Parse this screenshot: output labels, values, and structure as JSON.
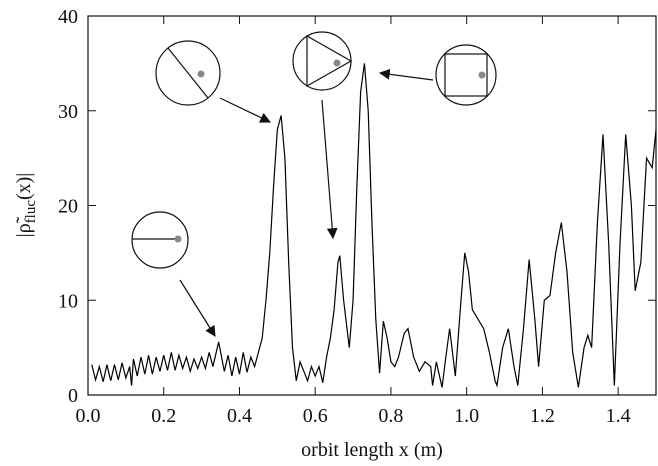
{
  "chart_data": {
    "type": "line",
    "xlabel": "orbit length x (m)",
    "ylabel": [
      "|ρ̃",
      "fluc",
      "(x)|"
    ],
    "xlim": [
      0,
      1.5
    ],
    "ylim": [
      0,
      40
    ],
    "xticks": [
      {
        "value": 0,
        "label": "0.0"
      },
      {
        "value": 0.2,
        "label": "0.2"
      },
      {
        "value": 0.4,
        "label": "0.4"
      },
      {
        "value": 0.6,
        "label": "0.6"
      },
      {
        "value": 0.8,
        "label": "0.8"
      },
      {
        "value": 1,
        "label": "1.0"
      },
      {
        "value": 1.2,
        "label": "1.2"
      },
      {
        "value": 1.4,
        "label": "1.4"
      }
    ],
    "yticks": [
      0,
      10,
      20,
      30,
      40
    ],
    "x": [
      0.01,
      0.02,
      0.03,
      0.04,
      0.05,
      0.06,
      0.07,
      0.08,
      0.09,
      0.1,
      0.11,
      0.115,
      0.12,
      0.13,
      0.14,
      0.15,
      0.16,
      0.17,
      0.18,
      0.19,
      0.2,
      0.21,
      0.22,
      0.23,
      0.24,
      0.25,
      0.26,
      0.27,
      0.28,
      0.29,
      0.3,
      0.31,
      0.32,
      0.33,
      0.345,
      0.36,
      0.37,
      0.38,
      0.39,
      0.4,
      0.41,
      0.42,
      0.43,
      0.44,
      0.45,
      0.46,
      0.47,
      0.48,
      0.49,
      0.5,
      0.51,
      0.52,
      0.53,
      0.54,
      0.55,
      0.56,
      0.57,
      0.58,
      0.59,
      0.6,
      0.61,
      0.62,
      0.63,
      0.64,
      0.65,
      0.66,
      0.665,
      0.675,
      0.69,
      0.7,
      0.71,
      0.72,
      0.73,
      0.74,
      0.75,
      0.76,
      0.77,
      0.78,
      0.79,
      0.8,
      0.81,
      0.82,
      0.835,
      0.845,
      0.86,
      0.875,
      0.89,
      0.905,
      0.91,
      0.92,
      0.935,
      0.945,
      0.955,
      0.97,
      0.985,
      0.995,
      1.005,
      1.015,
      1.03,
      1.045,
      1.06,
      1.075,
      1.08,
      1.095,
      1.11,
      1.125,
      1.135,
      1.15,
      1.165,
      1.18,
      1.19,
      1.205,
      1.22,
      1.235,
      1.25,
      1.265,
      1.28,
      1.295,
      1.31,
      1.32,
      1.33,
      1.345,
      1.36,
      1.375,
      1.39,
      1.405,
      1.42,
      1.435,
      1.445,
      1.46,
      1.475,
      1.49,
      1.5
    ],
    "series": [
      {
        "color": "#000000",
        "values": [
          3.2,
          1.6,
          3.0,
          1.4,
          3.2,
          1.5,
          3.2,
          1.6,
          3.4,
          1.8,
          3.0,
          1.0,
          3.8,
          2.0,
          4.0,
          2.2,
          4.2,
          2.2,
          4.0,
          2.5,
          4.2,
          2.6,
          4.5,
          2.6,
          4.2,
          2.8,
          4.0,
          2.5,
          3.8,
          2.8,
          4.0,
          2.8,
          4.5,
          3.0,
          5.6,
          2.5,
          4.2,
          2.0,
          4.0,
          2.2,
          4.5,
          2.4,
          4.0,
          3.0,
          4.5,
          6,
          10,
          15,
          22,
          28,
          29.5,
          25,
          14,
          5,
          1.5,
          3.5,
          2.5,
          1.5,
          3,
          2,
          3,
          1.3,
          4,
          6,
          9,
          14,
          14.7,
          10,
          5,
          10,
          22,
          32,
          35,
          30,
          18,
          8,
          2.3,
          7.8,
          6,
          3.5,
          3,
          4,
          6.5,
          7,
          4,
          2.5,
          3.5,
          3,
          1,
          3.5,
          0.8,
          4,
          7,
          2,
          10,
          15,
          13,
          9,
          8,
          7,
          4.5,
          1.5,
          1,
          5,
          7,
          3,
          1,
          7,
          14.3,
          8,
          3,
          10,
          10.5,
          15,
          18.2,
          13,
          4.5,
          0.8,
          5,
          6.3,
          5,
          18,
          27.5,
          16,
          1,
          16,
          27.5,
          20,
          11,
          14,
          25,
          24,
          28
        ]
      }
    ]
  }
}
